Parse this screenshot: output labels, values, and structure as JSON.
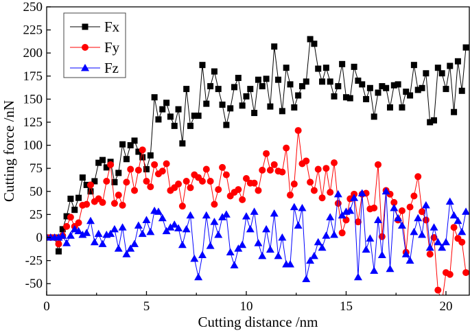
{
  "chart_data": {
    "type": "line",
    "xlabel": "Cutting distance /nm",
    "ylabel": "Cutting force /nN",
    "xlim": [
      0,
      21.17
    ],
    "ylim": [
      -62.5,
      250
    ],
    "xticks": [
      0,
      5,
      10,
      15,
      20
    ],
    "xtick_labels": [
      "0",
      "5",
      "10",
      "15",
      "20"
    ],
    "yticks": [
      -50,
      -25,
      0,
      25,
      50,
      75,
      100,
      125,
      150,
      175,
      200,
      225,
      250
    ],
    "ytick_labels": [
      "-50",
      "-25",
      "0",
      "25",
      "50",
      "75",
      "100",
      "125",
      "150",
      "175",
      "200",
      "225",
      "250"
    ],
    "grid": false,
    "legend_position": "top-left",
    "x_start": 0,
    "x_step": 0.2,
    "series": [
      {
        "name": "Fx",
        "color": "#000000",
        "marker": "square",
        "values": [
          0,
          0,
          0,
          -15,
          9,
          23,
          42,
          30,
          43,
          65,
          57,
          50,
          61,
          81,
          84,
          76,
          82,
          60,
          70,
          101,
          85,
          100,
          105,
          93,
          87,
          74,
          89,
          152,
          128,
          139,
          146,
          131,
          121,
          139,
          102,
          161,
          121,
          132,
          132,
          187,
          145,
          164,
          180,
          161,
          144,
          122,
          140,
          163,
          173,
          143,
          153,
          161,
          135,
          171,
          164,
          172,
          142,
          207,
          171,
          137,
          184,
          166,
          141,
          154,
          164,
          169,
          215,
          210,
          183,
          169,
          184,
          169,
          153,
          164,
          188,
          152,
          151,
          185,
          170,
          166,
          150,
          162,
          131,
          157,
          164,
          162,
          141,
          165,
          166,
          141,
          158,
          154,
          187,
          160,
          162,
          178,
          125,
          127,
          184,
          178,
          161,
          186,
          136,
          191,
          159,
          206
        ]
      },
      {
        "name": "Fy",
        "color": "#ff0000",
        "marker": "circle",
        "values": [
          0,
          0,
          0,
          -7,
          2,
          12,
          22,
          12,
          16,
          35,
          36,
          57,
          39,
          42,
          38,
          61,
          79,
          37,
          46,
          35,
          60,
          74,
          51,
          73,
          95,
          61,
          55,
          79,
          69,
          72,
          80,
          51,
          54,
          58,
          34,
          61,
          54,
          68,
          65,
          61,
          74,
          61,
          36,
          52,
          76,
          68,
          45,
          49,
          52,
          41,
          64,
          59,
          59,
          51,
          73,
          91,
          73,
          79,
          72,
          71,
          97,
          46,
          58,
          116,
          80,
          83,
          60,
          51,
          74,
          43,
          75,
          49,
          81,
          37,
          5,
          19,
          42,
          47,
          17,
          47,
          48,
          31,
          32,
          79,
          1,
          51,
          47,
          38,
          19,
          29,
          -16,
          33,
          45,
          66,
          28,
          19,
          -18,
          0,
          -57,
          -70,
          -38,
          -40,
          11,
          -1,
          -5,
          -38
        ]
      },
      {
        "name": "Fz",
        "color": "#0000ff",
        "marker": "triangle",
        "values": [
          0,
          0,
          0,
          0,
          2,
          -6,
          2,
          9,
          7,
          3,
          5,
          18,
          -5,
          4,
          -7,
          3,
          4,
          9,
          -12,
          11,
          -18,
          -12,
          -7,
          13,
          4,
          19,
          6,
          29,
          28,
          21,
          7,
          11,
          14,
          10,
          -8,
          9,
          24,
          -23,
          -43,
          -19,
          24,
          -9,
          17,
          3,
          22,
          25,
          -16,
          -30,
          -12,
          -8,
          23,
          9,
          28,
          -6,
          -20,
          9,
          -13,
          26,
          -20,
          0,
          -29,
          -29,
          33,
          13,
          32,
          -45,
          -25,
          -20,
          -5,
          -11,
          2,
          22,
          3,
          47,
          24,
          28,
          29,
          43,
          -43,
          48,
          -13,
          -1,
          -36,
          19,
          -19,
          50,
          -34,
          32,
          21,
          13,
          -18,
          -25,
          6,
          21,
          3,
          35,
          -11,
          11,
          -5,
          -11,
          -5,
          39,
          24,
          18,
          6,
          28
        ]
      }
    ]
  }
}
